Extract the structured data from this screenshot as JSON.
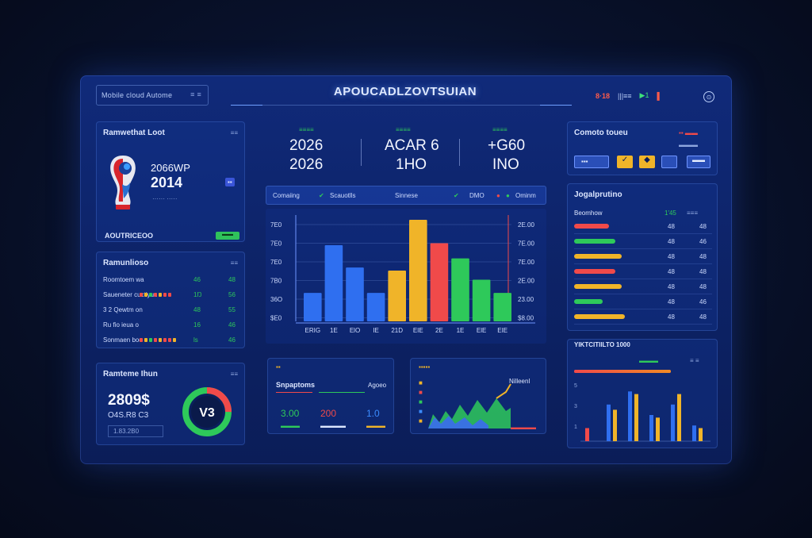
{
  "header": {
    "nav_label": "Mobile cloud Autome",
    "nav_dots": "≡ ≡",
    "title": "APOUCADLZOVTSUIAN",
    "right_red": "8·18",
    "right_icon": "|||≡≡",
    "right_green": "▶1",
    "right_red2": "▌",
    "close_icon": "⊙"
  },
  "left_top": {
    "title": "Ramwethat Loot",
    "badge": "≡≡",
    "line1": "2066WP",
    "line2": "2014",
    "sub": "······ ·····",
    "tag": "▪▪",
    "caption": "AOUTRICEOO",
    "pill": "▬▬"
  },
  "left_mid": {
    "title": "Ramunlioso",
    "badge": "≡≡",
    "rows": [
      {
        "label": "Roomtoem wa",
        "value": "46",
        "right": "48",
        "fill": 0.0
      },
      {
        "label": "Saueneter cuctiyun",
        "value": "1Ŋ",
        "right": "56",
        "fill": 0.7
      },
      {
        "label": "3 2 Qewtm on",
        "value": "48",
        "right": "55",
        "fill": 0.0
      },
      {
        "label": "Ru fio ieua o",
        "value": "16",
        "right": "46",
        "fill": 0.0
      },
      {
        "label": "Sonmaen boo",
        "value": "ls",
        "right": "46",
        "fill": 0.75
      }
    ]
  },
  "left_bot": {
    "title": "Ramteme Ihun",
    "badge": "≡≡",
    "value": "2809$",
    "sub": "O4S.R8 C3",
    "caption": "1.83.2B0",
    "donut_label": "V3",
    "donut_fill": 0.25
  },
  "kpis": [
    {
      "label": "≡≡≡≡",
      "line1": "2026",
      "line2": "2026"
    },
    {
      "label": "≡≡≡≡",
      "line1": "ACAR 6",
      "line2": "1HO"
    },
    {
      "label": "≡≡≡≡",
      "line1": "+G60",
      "line2": "INO"
    }
  ],
  "legend": {
    "item1": "Comaiing",
    "item2": "Scauotlls",
    "item3": "Sinnese",
    "item4": "DMO",
    "item5": "Ominm"
  },
  "colors": {
    "blue": "#2f6ff0",
    "yellow": "#f0b429",
    "red": "#f04a4a",
    "green": "#2ec95a",
    "orange": "#f08a24"
  },
  "chart_data": [
    {
      "type": "bar",
      "categories": [
        "ERIG",
        "1E",
        "ElO",
        "IE",
        "21D",
        "EIE",
        "2E",
        "1E",
        "ElE",
        "EIE"
      ],
      "values": [
        28,
        75,
        53,
        28,
        50,
        100,
        77,
        62,
        41,
        28
      ],
      "colors": [
        "#2f6ff0",
        "#2f6ff0",
        "#2f6ff0",
        "#2f6ff0",
        "#f0b429",
        "#f0b429",
        "#f04a4a",
        "#2ec95a",
        "#2ec95a",
        "#2ec95a"
      ],
      "y_left_ticks": [
        "7E0",
        "7E0",
        "7E0",
        "7B0",
        "36O",
        "$E0"
      ],
      "y_right_ticks": [
        "2E.00",
        "7E.00",
        "7E.00",
        "2E.00",
        "23.00",
        "$8.00"
      ]
    }
  ],
  "small_panel_1": {
    "tag": "▪▪",
    "title": "Snpaptoms",
    "right": "Agoeo",
    "values": [
      "3.00",
      "200",
      "1.0"
    ],
    "captions": [
      "▬▬▬",
      "▬▬▬▬",
      "▬▬▬"
    ]
  },
  "small_panel_2": {
    "tag": "▪▪▪▪▪",
    "side": [
      "■",
      "■",
      "■",
      "■",
      "■"
    ],
    "label": "Nilleenl",
    "caption": "▬▬▬▬"
  },
  "right_top": {
    "title": "Comoto toueu",
    "badge": "▪▪ ▬▬",
    "sub": "▬▬▬",
    "icons": [
      "▪▪▪",
      "✓",
      "◆",
      "▬▬"
    ]
  },
  "right_mid": {
    "title": "Jogalprutino",
    "header_left": "Beomhow",
    "header_mid": "1'45",
    "header_right": "≡≡≡",
    "rows": [
      {
        "value": "48",
        "right": "48",
        "color": "#f04a4a",
        "fill": 0.55
      },
      {
        "value": "48",
        "right": "46",
        "color": "#2ec95a",
        "fill": 0.65
      },
      {
        "value": "48",
        "right": "48",
        "color": "#f0b429",
        "fill": 0.75
      },
      {
        "value": "48",
        "right": "48",
        "color": "#f04a4a",
        "fill": 0.65
      },
      {
        "value": "48",
        "right": "48",
        "color": "#f0b429",
        "fill": 0.75
      },
      {
        "value": "48",
        "right": "46",
        "color": "#2ec95a",
        "fill": 0.45
      },
      {
        "value": "48",
        "right": "48",
        "color": "#f0b429",
        "fill": 0.8
      }
    ]
  },
  "right_bot": {
    "title": "YIKTCITIILTO 1000",
    "legend_green": "▬▬▬",
    "legend_right": "≡ ≡",
    "tick_left": [
      "5",
      "3",
      "1"
    ]
  }
}
